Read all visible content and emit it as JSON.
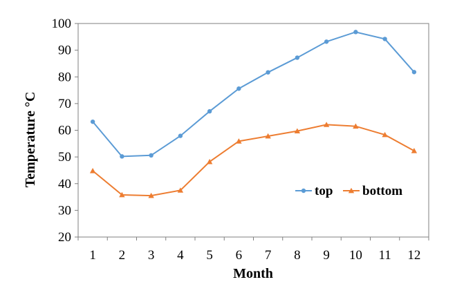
{
  "chart_data": {
    "type": "line",
    "x": [
      1,
      2,
      3,
      4,
      5,
      6,
      7,
      8,
      9,
      10,
      11,
      12
    ],
    "series": [
      {
        "name": "top",
        "color": "#5b9bd5",
        "marker": "circle",
        "values": [
          63.2,
          50.2,
          50.6,
          57.9,
          67.1,
          75.6,
          81.7,
          87.2,
          93.2,
          96.8,
          94.2,
          81.8
        ]
      },
      {
        "name": "bottom",
        "color": "#ed7d31",
        "marker": "triangle",
        "values": [
          44.8,
          35.8,
          35.5,
          37.5,
          48.2,
          55.9,
          57.8,
          59.7,
          62.1,
          61.5,
          58.3,
          52.3
        ]
      }
    ],
    "xlabel": "Month",
    "ylabel": "Temperature °C",
    "ylim": [
      20,
      100
    ],
    "yticks": [
      20,
      30,
      40,
      50,
      60,
      70,
      80,
      90,
      100
    ],
    "xticks": [
      "1",
      "2",
      "3",
      "4",
      "5",
      "6",
      "7",
      "8",
      "9",
      "10",
      "11",
      "12"
    ],
    "grid": false,
    "legend": "lower-right inside plot"
  }
}
